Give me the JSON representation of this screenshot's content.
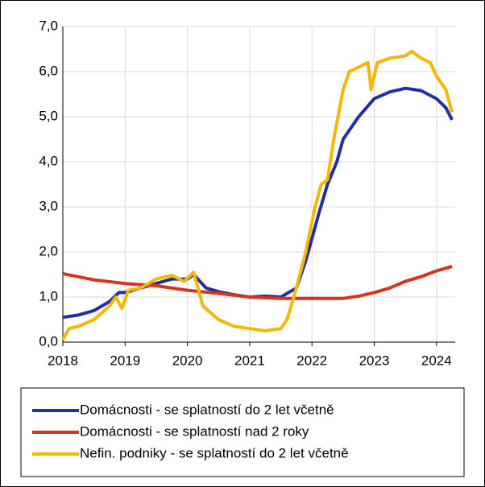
{
  "chart_data": {
    "type": "line",
    "xlim": [
      2018,
      2024.3
    ],
    "xticks": [
      2018,
      2019,
      2020,
      2021,
      2022,
      2023,
      2024
    ],
    "ylim": [
      0,
      7
    ],
    "yticks": [
      {
        "value": 0,
        "label": "0,0"
      },
      {
        "value": 1,
        "label": "1,0"
      },
      {
        "value": 2,
        "label": "2,0"
      },
      {
        "value": 3,
        "label": "3,0"
      },
      {
        "value": 4,
        "label": "4,0"
      },
      {
        "value": 5,
        "label": "5,0"
      },
      {
        "value": 6,
        "label": "6,0"
      },
      {
        "value": 7,
        "label": "7,0"
      }
    ],
    "grid": true,
    "legend": "bottom",
    "series": [
      {
        "name": "Domácnosti - se splatností do 2 let včetně",
        "color": "#1f2fa8",
        "x": [
          2018,
          2018.25,
          2018.5,
          2018.75,
          2018.9,
          2019,
          2019.25,
          2019.5,
          2019.75,
          2020,
          2020.1,
          2020.3,
          2020.5,
          2020.75,
          2021,
          2021.25,
          2021.5,
          2021.75,
          2021.9,
          2022,
          2022.1,
          2022.25,
          2022.4,
          2022.5,
          2022.75,
          2023,
          2023.25,
          2023.5,
          2023.75,
          2024,
          2024.15,
          2024.25
        ],
        "values": [
          0.55,
          0.6,
          0.7,
          0.9,
          1.1,
          1.1,
          1.2,
          1.3,
          1.4,
          1.4,
          1.5,
          1.2,
          1.12,
          1.05,
          1.0,
          1.02,
          1.0,
          1.2,
          1.8,
          2.3,
          2.8,
          3.5,
          4.0,
          4.5,
          5.0,
          5.4,
          5.55,
          5.63,
          5.58,
          5.4,
          5.2,
          4.93
        ]
      },
      {
        "name": "Domácnosti - se splatností nad 2 roky",
        "color": "#d9321f",
        "x": [
          2018,
          2018.25,
          2018.5,
          2019,
          2019.5,
          2020,
          2020.5,
          2021,
          2021.5,
          2022,
          2022.5,
          2022.75,
          2023,
          2023.25,
          2023.5,
          2023.75,
          2024,
          2024.25
        ],
        "values": [
          1.52,
          1.45,
          1.38,
          1.3,
          1.25,
          1.15,
          1.08,
          1.0,
          0.97,
          0.97,
          0.97,
          1.02,
          1.1,
          1.2,
          1.35,
          1.45,
          1.58,
          1.68
        ]
      },
      {
        "name": "Nefin. podniky - se splatností do 2 let včetně",
        "color": "#f5b800",
        "x": [
          2018,
          2018.1,
          2018.25,
          2018.5,
          2018.75,
          2018.85,
          2018.95,
          2019.05,
          2019.25,
          2019.5,
          2019.75,
          2019.95,
          2020.1,
          2020.25,
          2020.5,
          2020.75,
          2021,
          2021.25,
          2021.5,
          2021.6,
          2021.75,
          2021.9,
          2022.05,
          2022.15,
          2022.25,
          2022.35,
          2022.5,
          2022.6,
          2022.75,
          2022.9,
          2022.95,
          2023.05,
          2023.25,
          2023.5,
          2023.6,
          2023.75,
          2023.9,
          2024,
          2024.15,
          2024.25
        ],
        "values": [
          0.05,
          0.3,
          0.35,
          0.5,
          0.8,
          1.0,
          0.75,
          1.15,
          1.2,
          1.4,
          1.48,
          1.35,
          1.55,
          0.8,
          0.5,
          0.35,
          0.3,
          0.25,
          0.3,
          0.5,
          1.2,
          2.0,
          3.0,
          3.5,
          3.6,
          4.5,
          5.6,
          6.0,
          6.1,
          6.2,
          5.6,
          6.2,
          6.3,
          6.35,
          6.45,
          6.3,
          6.2,
          5.9,
          5.6,
          5.1
        ]
      }
    ]
  }
}
